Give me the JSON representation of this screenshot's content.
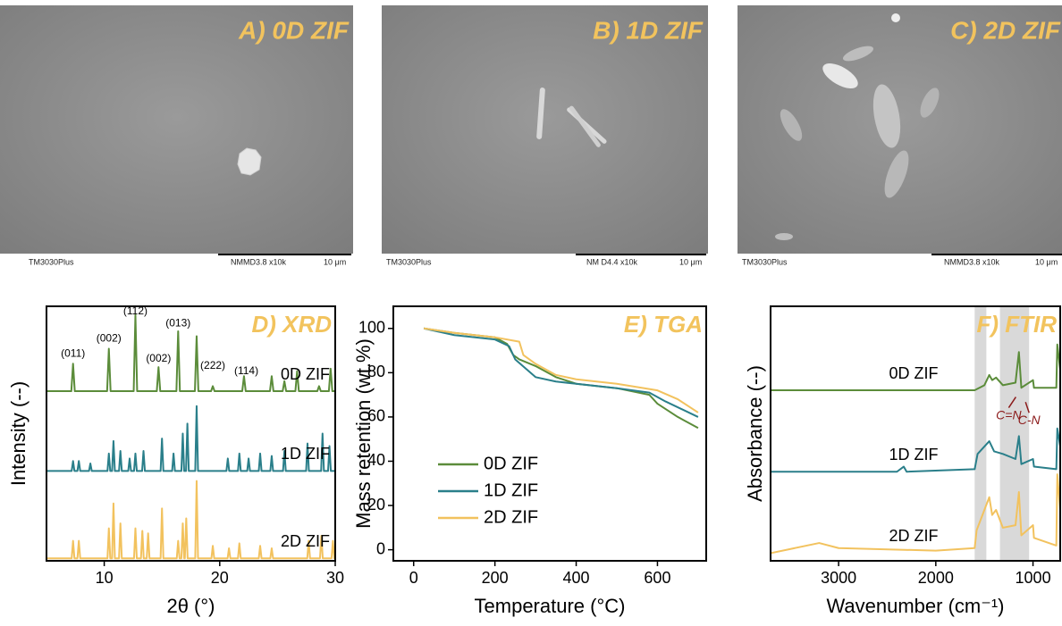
{
  "images": [
    {
      "label": "A) 0D ZIF",
      "instrument": "TM3030Plus",
      "settings": "NMMD3.8  x10k",
      "scale": "10 μm"
    },
    {
      "label": "B) 1D ZIF",
      "instrument": "TM3030Plus",
      "settings": "NM  D4.4  x10k",
      "scale": "10 μm"
    },
    {
      "label": "C) 2D ZIF",
      "instrument": "TM3030Plus",
      "settings": "NMMD3.8  x10k",
      "scale": "10 μm"
    }
  ],
  "chart_data": [
    {
      "type": "line",
      "title": "D) XRD",
      "xlabel": "2θ (°)",
      "ylabel": "Intensity (--)",
      "xlim": [
        5,
        30
      ],
      "xticks": [
        10,
        20,
        30
      ],
      "ylim": [
        0,
        102
      ],
      "series": [
        {
          "name": "0D ZIF",
          "color": "#5b8c3a",
          "x": [
            5,
            7.15,
            7.3,
            7.45,
            10.25,
            10.4,
            10.55,
            12.55,
            12.7,
            12.85,
            14.55,
            14.7,
            14.85,
            16.25,
            16.4,
            16.55,
            17.85,
            18.0,
            18.15,
            19.25,
            19.4,
            19.55,
            21.95,
            22.1,
            22.25,
            24.35,
            24.5,
            24.65,
            25.45,
            25.6,
            25.75,
            26.55,
            26.7,
            26.85,
            28.45,
            28.6,
            28.75,
            29.45,
            29.6,
            29.75,
            30
          ],
          "values": [
            68,
            68,
            79,
            68,
            68,
            85,
            68,
            68,
            98.5,
            68,
            68,
            77.6,
            68,
            68,
            92,
            68,
            68,
            90,
            68,
            68,
            70,
            68,
            68,
            74,
            68,
            68,
            74,
            68,
            68,
            72,
            68,
            68,
            76,
            68,
            68,
            70,
            68,
            68,
            77,
            68,
            68
          ]
        },
        {
          "name": "1D ZIF",
          "color": "#2a7f8a",
          "x": [
            5,
            7.18,
            7.3,
            7.42,
            7.68,
            7.8,
            7.92,
            8.68,
            8.8,
            8.92,
            10.28,
            10.4,
            10.52,
            10.68,
            10.8,
            10.92,
            11.28,
            11.4,
            11.52,
            12.08,
            12.2,
            12.32,
            12.58,
            12.7,
            12.82,
            13.28,
            13.4,
            13.52,
            14.88,
            15.0,
            15.12,
            15.88,
            16.0,
            16.12,
            16.68,
            16.8,
            16.92,
            17.08,
            17.2,
            17.32,
            17.88,
            18.0,
            18.12,
            20.58,
            20.7,
            20.82,
            21.58,
            21.7,
            21.82,
            22.38,
            22.5,
            22.62,
            23.38,
            23.5,
            23.62,
            24.38,
            24.5,
            24.62,
            25.48,
            25.6,
            25.72,
            27.48,
            27.6,
            27.72,
            28.78,
            28.9,
            29.02,
            29.38,
            29.5,
            29.62,
            30
          ],
          "values": [
            36,
            36,
            40,
            36,
            36,
            40,
            36,
            36,
            39,
            36,
            36,
            43,
            36,
            36,
            48,
            36,
            36,
            44,
            36,
            36,
            41,
            36,
            36,
            43,
            36,
            36,
            44,
            36,
            36,
            49,
            36,
            36,
            43,
            36,
            36,
            51,
            36,
            36,
            55,
            36,
            36,
            62,
            36,
            36,
            41,
            36,
            36,
            43,
            36,
            36,
            41,
            36,
            36,
            43,
            36,
            36,
            42,
            36,
            36,
            44,
            36,
            36,
            47,
            36,
            36,
            51,
            36,
            36,
            46,
            36,
            36
          ]
        },
        {
          "name": "2D ZIF",
          "color": "#f2c25e",
          "x": [
            5,
            7.18,
            7.3,
            7.42,
            7.68,
            7.8,
            7.92,
            10.28,
            10.4,
            10.52,
            10.68,
            10.8,
            10.92,
            11.28,
            11.4,
            11.52,
            12.58,
            12.7,
            12.82,
            13.18,
            13.3,
            13.42,
            13.68,
            13.8,
            13.92,
            14.88,
            15.0,
            15.12,
            16.28,
            16.4,
            16.52,
            16.68,
            16.8,
            16.92,
            16.98,
            17.1,
            17.22,
            17.88,
            18.0,
            18.12,
            19.28,
            19.4,
            19.52,
            20.68,
            20.8,
            20.92,
            21.58,
            21.7,
            21.82,
            23.38,
            23.5,
            23.62,
            24.38,
            24.5,
            24.62,
            27.58,
            27.7,
            27.82,
            28.68,
            28.8,
            28.92,
            29.68,
            29.8,
            29.92,
            30
          ],
          "values": [
            1,
            1,
            8,
            1,
            1,
            8,
            1,
            1,
            13,
            1,
            1,
            23,
            1,
            1,
            15,
            1,
            1,
            13,
            1,
            1,
            12,
            1,
            1,
            11,
            1,
            1,
            21,
            1,
            1,
            8,
            1,
            1,
            15,
            1,
            1,
            17,
            1,
            1,
            32,
            1,
            1,
            6,
            1,
            1,
            5,
            1,
            1,
            7,
            1,
            1,
            6,
            1,
            1,
            5,
            1,
            1,
            8,
            1,
            1,
            10,
            1,
            1,
            8,
            1,
            1
          ]
        }
      ],
      "annotations": [
        {
          "text": "(011)",
          "x": 7.3,
          "y": 83
        },
        {
          "text": "(002)",
          "x": 10.4,
          "y": 89
        },
        {
          "text": "(112)",
          "x": 12.7,
          "y": 100
        },
        {
          "text": "(002)",
          "x": 14.7,
          "y": 81
        },
        {
          "text": "(013)",
          "x": 16.4,
          "y": 95
        },
        {
          "text": "(222)",
          "x": 19.4,
          "y": 78
        },
        {
          "text": "(114)",
          "x": 22.3,
          "y": 76
        }
      ]
    },
    {
      "type": "line",
      "title": "E) TGA",
      "xlabel": "Temperature (°C)",
      "ylabel": "Mass retention (wt.%)",
      "xlim": [
        -50,
        720
      ],
      "xticks": [
        0,
        200,
        400,
        600
      ],
      "ylim": [
        -5,
        110
      ],
      "yticks": [
        0,
        20,
        40,
        60,
        80,
        100
      ],
      "legend": "lower left",
      "series": [
        {
          "name": "0D ZIF",
          "color": "#5b8c3a",
          "x": [
            25,
            100,
            200,
            230,
            245,
            260,
            300,
            350,
            400,
            500,
            580,
            600,
            650,
            700
          ],
          "values": [
            100,
            98,
            96,
            93,
            88,
            86,
            83,
            78,
            75,
            73,
            70,
            66,
            60,
            55
          ]
        },
        {
          "name": "1D ZIF",
          "color": "#2a7f8a",
          "x": [
            25,
            100,
            200,
            235,
            250,
            300,
            350,
            400,
            500,
            580,
            620,
            700
          ],
          "values": [
            100,
            97,
            95,
            92,
            86,
            78,
            76,
            75,
            73,
            71,
            67,
            60
          ]
        },
        {
          "name": "2D ZIF",
          "color": "#f2c25e",
          "x": [
            25,
            100,
            200,
            260,
            270,
            300,
            350,
            400,
            500,
            600,
            650,
            700
          ],
          "values": [
            100,
            98,
            96,
            94,
            88,
            84,
            79,
            77,
            75,
            72,
            68,
            62
          ]
        }
      ]
    },
    {
      "type": "line",
      "title": "F) FTIR",
      "xlabel": "Wavenumber (cm⁻¹)",
      "ylabel": "Absorbance (--)",
      "xlim": [
        3700,
        720
      ],
      "xticks": [
        3000,
        2000,
        1000
      ],
      "ylim": [
        0,
        100
      ],
      "shaded_regions": [
        [
          1600,
          1480
        ],
        [
          1340,
          1040
        ]
      ],
      "series": [
        {
          "name": "0D ZIF",
          "color": "#5b8c3a",
          "x": [
            3700,
            3000,
            2000,
            1600,
            1500,
            1450,
            1420,
            1380,
            1310,
            1180,
            1145,
            1120,
            1000,
            990,
            760,
            750,
            720
          ],
          "values": [
            67,
            67,
            67,
            67,
            69,
            73,
            71,
            72,
            69,
            70,
            82,
            68,
            71,
            68,
            68,
            85,
            75
          ]
        },
        {
          "name": "1D ZIF",
          "color": "#2a7f8a",
          "x": [
            3700,
            2400,
            2330,
            2300,
            1600,
            1570,
            1450,
            1400,
            1310,
            1180,
            1145,
            1120,
            1000,
            990,
            760,
            750,
            720
          ],
          "values": [
            35,
            35,
            37,
            35,
            36,
            42,
            47,
            43,
            42,
            40,
            49,
            38,
            40,
            37,
            36,
            52,
            45
          ]
        },
        {
          "name": "2D ZIF",
          "color": "#f2c25e",
          "x": [
            3700,
            3200,
            3000,
            2000,
            1600,
            1580,
            1450,
            1420,
            1380,
            1310,
            1180,
            1145,
            1120,
            1000,
            990,
            760,
            750,
            720
          ],
          "values": [
            3,
            7,
            5,
            4,
            5,
            12,
            25,
            18,
            20,
            13,
            14,
            27,
            10,
            14,
            9,
            6,
            34,
            20
          ]
        }
      ],
      "annotations": [
        {
          "text": "C=N",
          "x": 1250,
          "y": 57,
          "color": "#8b1a1a"
        },
        {
          "text": "C-N",
          "x": 1040,
          "y": 55,
          "color": "#8b1a1a"
        }
      ]
    }
  ]
}
